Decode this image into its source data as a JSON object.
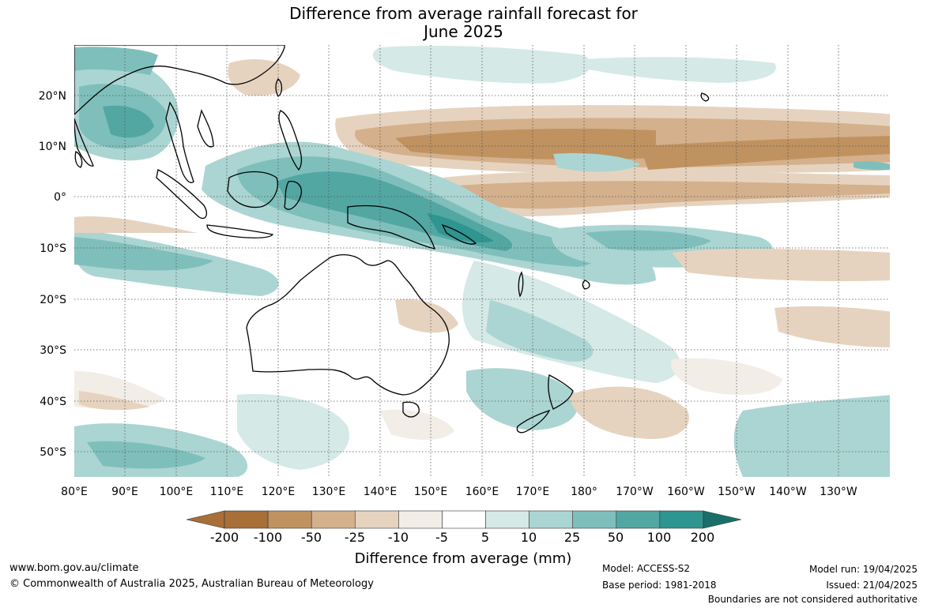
{
  "title": {
    "line1": "Difference from average rainfall forecast for",
    "line2": "June 2025"
  },
  "map": {
    "lat_labels": [
      "20°N",
      "10°N",
      "0°",
      "10°S",
      "20°S",
      "30°S",
      "40°S",
      "50°S"
    ],
    "lon_labels": [
      "80°E",
      "90°E",
      "100°E",
      "110°E",
      "120°E",
      "130°E",
      "140°E",
      "150°E",
      "160°E",
      "170°E",
      "180°",
      "170°W",
      "160°W",
      "150°W",
      "140°W",
      "130°W"
    ]
  },
  "colorbar": {
    "title": "Difference from average (mm)",
    "ticks": [
      "-200",
      "-100",
      "-50",
      "-25",
      "-10",
      "-5",
      "5",
      "10",
      "25",
      "50",
      "100",
      "200"
    ],
    "colors": [
      "#a86f38",
      "#c0925f",
      "#d4b08c",
      "#e6d3bf",
      "#f2ede7",
      "#ffffff",
      "#d5e9e7",
      "#abd5d2",
      "#7fbfbb",
      "#52a7a3",
      "#2e9590",
      "#1a6f6b"
    ]
  },
  "footer": {
    "website": "www.bom.gov.au/climate",
    "copyright": "© Commonwealth of Australia 2025, Australian Bureau of Meteorology",
    "model": "Model: ACCESS-S2",
    "base_period": "Base period: 1981-2018",
    "model_run": "Model run: 19/04/2025",
    "issued": "Issued: 21/04/2025",
    "boundaries": "Boundaries are not considered authoritative"
  }
}
